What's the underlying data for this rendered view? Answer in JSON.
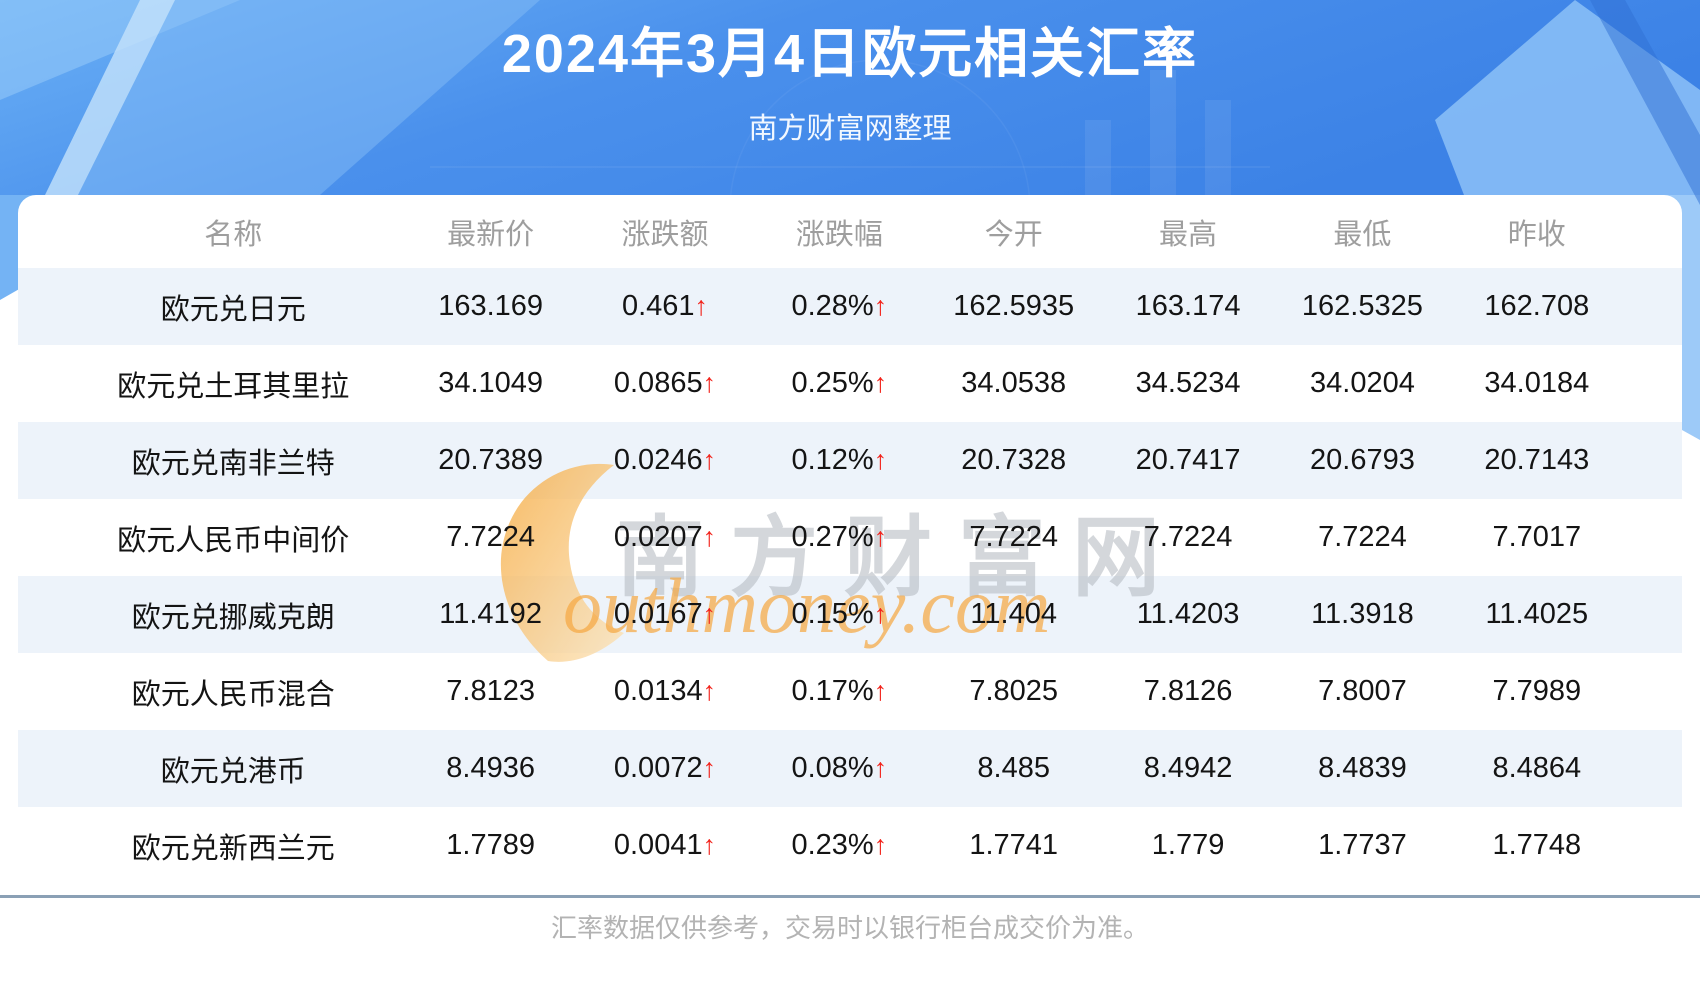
{
  "banner": {
    "title": "2024年3月4日欧元相关汇率",
    "subtitle": "南方财富网整理"
  },
  "table": {
    "columns": [
      "名称",
      "最新价",
      "涨跌额",
      "涨跌幅",
      "今开",
      "最高",
      "最低",
      "昨收"
    ],
    "up_arrow": "↑",
    "rows": [
      {
        "name": "欧元兑日元",
        "latest": "163.169",
        "change": "0.461",
        "change_pct": "0.28%",
        "open": "162.5935",
        "high": "163.174",
        "low": "162.5325",
        "prev_close": "162.708"
      },
      {
        "name": "欧元兑土耳其里拉",
        "latest": "34.1049",
        "change": "0.0865",
        "change_pct": "0.25%",
        "open": "34.0538",
        "high": "34.5234",
        "low": "34.0204",
        "prev_close": "34.0184"
      },
      {
        "name": "欧元兑南非兰特",
        "latest": "20.7389",
        "change": "0.0246",
        "change_pct": "0.12%",
        "open": "20.7328",
        "high": "20.7417",
        "low": "20.6793",
        "prev_close": "20.7143"
      },
      {
        "name": "欧元人民币中间价",
        "latest": "7.7224",
        "change": "0.0207",
        "change_pct": "0.27%",
        "open": "7.7224",
        "high": "7.7224",
        "low": "7.7224",
        "prev_close": "7.7017"
      },
      {
        "name": "欧元兑挪威克朗",
        "latest": "11.4192",
        "change": "0.0167",
        "change_pct": "0.15%",
        "open": "11.404",
        "high": "11.4203",
        "low": "11.3918",
        "prev_close": "11.4025"
      },
      {
        "name": "欧元人民币混合",
        "latest": "7.8123",
        "change": "0.0134",
        "change_pct": "0.17%",
        "open": "7.8025",
        "high": "7.8126",
        "low": "7.8007",
        "prev_close": "7.7989"
      },
      {
        "name": "欧元兑港币",
        "latest": "8.4936",
        "change": "0.0072",
        "change_pct": "0.08%",
        "open": "8.485",
        "high": "8.4942",
        "low": "8.4839",
        "prev_close": "8.4864"
      },
      {
        "name": "欧元兑新西兰元",
        "latest": "1.7789",
        "change": "0.0041",
        "change_pct": "0.23%",
        "open": "1.7741",
        "high": "1.779",
        "low": "1.7737",
        "prev_close": "1.7748"
      }
    ]
  },
  "watermark": {
    "cjk": "南方财富网",
    "latin": "outhmoney.com"
  },
  "footer": {
    "note": "汇率数据仅供参考，交易时以银行柜台成交价为准。"
  },
  "colors": {
    "accent_red": "#f2241c",
    "row_stripe": "#edf3fa",
    "banner_blue_light": "#6ab0f5",
    "banner_blue_dark": "#3c82e6",
    "header_text_gray": "#9e9e9e",
    "divider_gray_blue": "#8aa0b5",
    "footer_text_gray": "#b3b3b3",
    "watermark_orange": "#f5a843"
  }
}
